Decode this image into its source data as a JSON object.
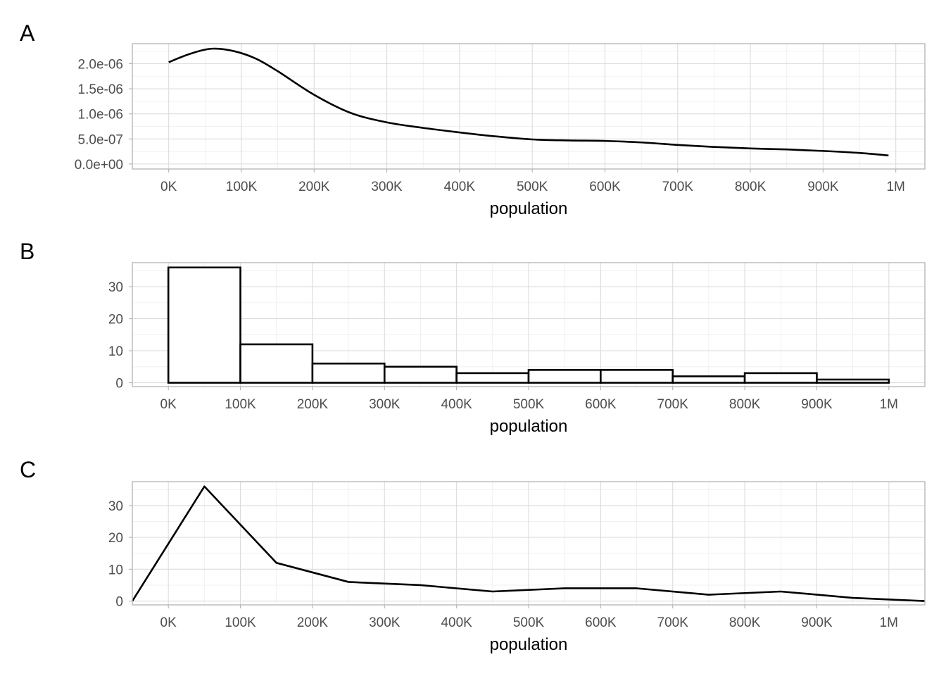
{
  "chart_data": [
    {
      "type": "line",
      "subtype": "density",
      "tag": "A",
      "xlabel": "population",
      "ylabel": "",
      "x_ticks": [
        "0K",
        "100K",
        "200K",
        "300K",
        "400K",
        "500K",
        "600K",
        "700K",
        "800K",
        "900K",
        "1M"
      ],
      "y_ticks": [
        "0.0e+00",
        "5.0e-07",
        "1.0e-06",
        "1.5e-06",
        "2.0e-06"
      ],
      "xlim": [
        -50000,
        1040000
      ],
      "ylim": [
        -1e-07,
        2.4e-06
      ],
      "grid": true,
      "series": [
        {
          "x": [
            0,
            30000,
            60000,
            90000,
            120000,
            150000,
            200000,
            250000,
            300000,
            350000,
            400000,
            450000,
            500000,
            550000,
            600000,
            650000,
            700000,
            750000,
            800000,
            850000,
            900000,
            950000,
            990000
          ],
          "y": [
            2.03e-06,
            2.2e-06,
            2.3e-06,
            2.25e-06,
            2.1e-06,
            1.85e-06,
            1.38e-06,
            1.02e-06,
            8.3e-07,
            7.2e-07,
            6.3e-07,
            5.5e-07,
            4.9e-07,
            4.7e-07,
            4.6e-07,
            4.3e-07,
            3.8e-07,
            3.4e-07,
            3.1e-07,
            2.9e-07,
            2.6e-07,
            2.2e-07,
            1.7e-07
          ]
        }
      ]
    },
    {
      "type": "bar",
      "subtype": "histogram",
      "tag": "B",
      "xlabel": "population",
      "ylabel": "",
      "x_ticks": [
        "0K",
        "100K",
        "200K",
        "300K",
        "400K",
        "500K",
        "600K",
        "700K",
        "800K",
        "900K",
        "1M"
      ],
      "y_ticks": [
        "0",
        "10",
        "20",
        "30"
      ],
      "xlim": [
        -50000,
        1050000
      ],
      "ylim": [
        -1.2,
        37.5
      ],
      "grid": true,
      "bin_edges": [
        0,
        100000,
        200000,
        300000,
        400000,
        500000,
        600000,
        700000,
        800000,
        900000,
        1000000
      ],
      "values": [
        36,
        12,
        6,
        5,
        3,
        4,
        4,
        2,
        3,
        1
      ]
    },
    {
      "type": "line",
      "subtype": "frequency polygon",
      "tag": "C",
      "xlabel": "population",
      "ylabel": "",
      "x_ticks": [
        "0K",
        "100K",
        "200K",
        "300K",
        "400K",
        "500K",
        "600K",
        "700K",
        "800K",
        "900K",
        "1M"
      ],
      "y_ticks": [
        "0",
        "10",
        "20",
        "30"
      ],
      "xlim": [
        -50000,
        1050000
      ],
      "ylim": [
        -1.2,
        37.5
      ],
      "grid": true,
      "series": [
        {
          "x": [
            -50000,
            50000,
            150000,
            250000,
            350000,
            450000,
            550000,
            650000,
            750000,
            850000,
            950000,
            1050000
          ],
          "y": [
            0,
            36,
            12,
            6,
            5,
            3,
            4,
            4,
            2,
            3,
            1,
            0
          ]
        }
      ]
    }
  ]
}
